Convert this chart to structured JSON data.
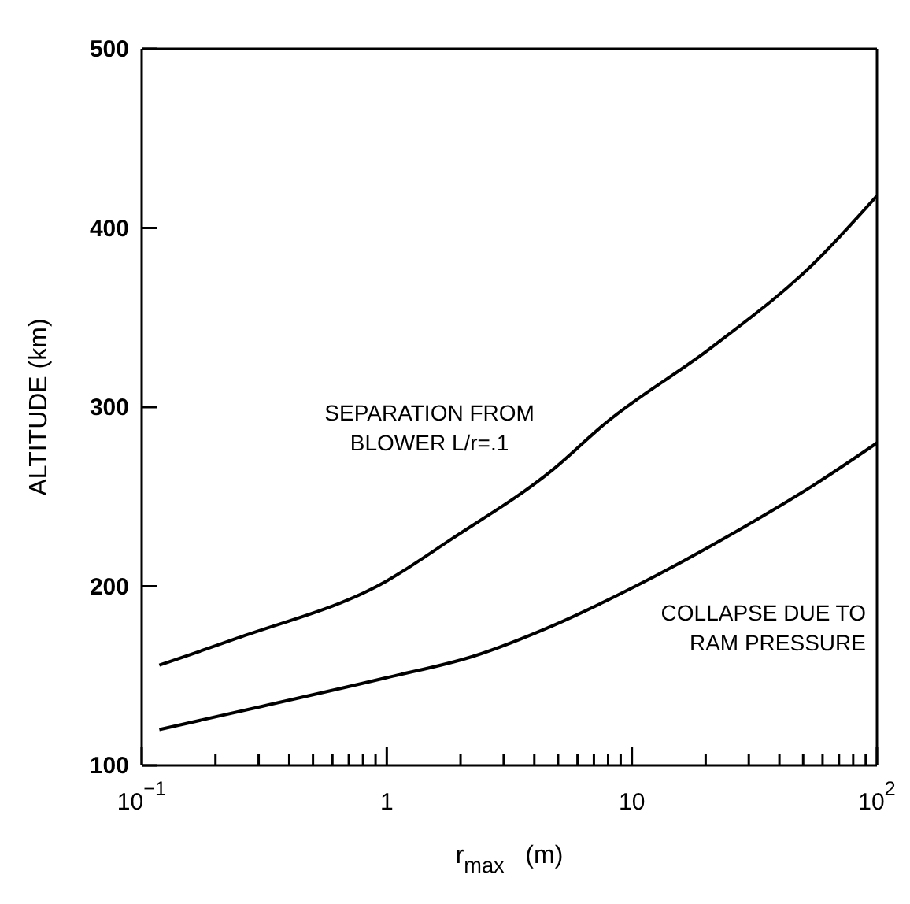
{
  "chart_data": {
    "type": "line",
    "xlabel": "r$_{max}$   (m)",
    "ylabel": "ALTITUDE (km)",
    "log": "x",
    "xlim": [
      0.1,
      100
    ],
    "ylim": [
      100,
      500
    ],
    "xticks": [
      {
        "value": 0.1,
        "label": "10$^{−1}$"
      },
      {
        "value": 0.2,
        "label": null
      },
      {
        "value": 0.3,
        "label": null
      },
      {
        "value": 0.4,
        "label": null
      },
      {
        "value": 0.5,
        "label": null
      },
      {
        "value": 0.6,
        "label": null
      },
      {
        "value": 0.7,
        "label": null
      },
      {
        "value": 0.8,
        "label": null
      },
      {
        "value": 0.9,
        "label": null
      },
      1,
      {
        "value": 2,
        "label": null
      },
      {
        "value": 3,
        "label": null
      },
      {
        "value": 4,
        "label": null
      },
      {
        "value": 5,
        "label": null
      },
      {
        "value": 6,
        "label": null
      },
      {
        "value": 7,
        "label": null
      },
      {
        "value": 8,
        "label": null
      },
      {
        "value": 9,
        "label": null
      },
      10,
      {
        "value": 20,
        "label": null
      },
      {
        "value": 30,
        "label": null
      },
      {
        "value": 40,
        "label": null
      },
      {
        "value": 50,
        "label": null
      },
      {
        "value": 60,
        "label": null
      },
      {
        "value": 70,
        "label": null
      },
      {
        "value": 80,
        "label": null
      },
      {
        "value": 90,
        "label": null
      },
      {
        "value": 100,
        "label": "10$^{2}$"
      }
    ],
    "yticks": [
      100,
      200,
      300,
      400,
      500
    ],
    "line_style": "solid",
    "marker": "none",
    "series": [
      {
        "color": "#000000",
        "x": [
          0.118,
          0.245,
          1,
          1.82,
          4.75,
          7.8,
          21,
          56,
          100
        ],
        "values": [
          156,
          171,
          203,
          226,
          265,
          291,
          333,
          381,
          418
        ]
      },
      {
        "color": "#000000",
        "x": [
          0.118,
          0.31,
          1,
          2.26,
          4.75,
          10,
          27,
          56,
          100
        ],
        "values": [
          120,
          133,
          149,
          161,
          178,
          199,
          231,
          257,
          280
        ]
      }
    ],
    "annotations": [
      "SEPARATION FROM\nBLOWER L/r=.1",
      "COLLAPSE DUE TO\nRAM PRESSURE"
    ]
  }
}
